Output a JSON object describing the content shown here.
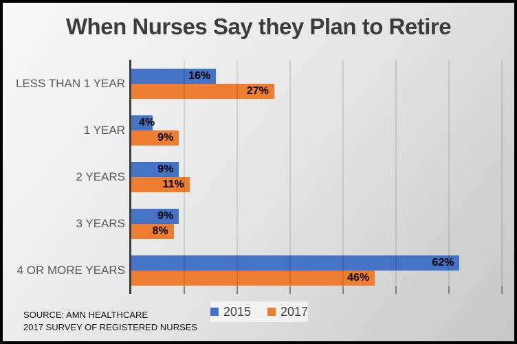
{
  "title": "When Nurses Say they Plan to Retire",
  "source": {
    "line1": "SOURCE: AMN HEALTHCARE",
    "line2": "2017 SURVEY OF REGISTERED NURSES"
  },
  "legend": {
    "items": [
      {
        "label": "2015",
        "color": "#4472C4"
      },
      {
        "label": "2017",
        "color": "#ED7D31"
      }
    ]
  },
  "chart_data": {
    "type": "bar",
    "orientation": "horizontal",
    "title": "When Nurses Say they Plan to Retire",
    "categories": [
      "LESS THAN 1 YEAR",
      "1 YEAR",
      "2 YEARS",
      "3 YEARS",
      "4 OR MORE YEARS"
    ],
    "series": [
      {
        "name": "2015",
        "color": "#4472C4",
        "values": [
          16,
          4,
          9,
          9,
          62
        ]
      },
      {
        "name": "2017",
        "color": "#ED7D31",
        "values": [
          27,
          9,
          11,
          8,
          46
        ]
      }
    ],
    "data_labels": [
      [
        "16%",
        "4%",
        "9%",
        "9%",
        "62%"
      ],
      [
        "27%",
        "9%",
        "11%",
        "8%",
        "46%"
      ]
    ],
    "value_suffix": "%",
    "xlim": [
      0,
      70
    ],
    "gridline_interval": 10,
    "grid": true,
    "value_axis_labels_visible": false,
    "legend_position": "bottom-center"
  }
}
